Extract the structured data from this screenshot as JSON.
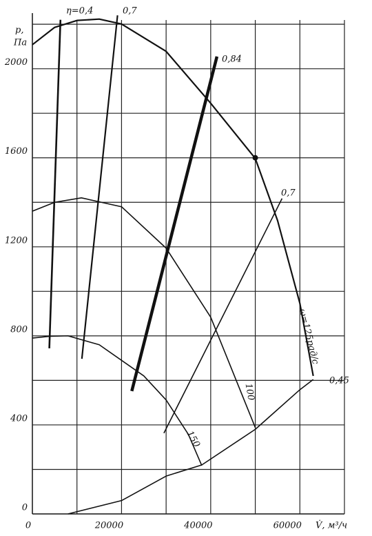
{
  "chart_data": {
    "type": "line",
    "y_label_1": "p,",
    "y_label_2": "Па",
    "x_label": "V̇, м³/ч",
    "xlim": [
      0,
      70000
    ],
    "ylim": [
      0,
      2250
    ],
    "xticks": [
      0,
      20000,
      40000,
      60000
    ],
    "yticks": [
      0,
      400,
      800,
      1200,
      1600,
      2000
    ],
    "xgrid": [
      10000,
      20000,
      30000,
      40000,
      50000,
      60000,
      70000
    ],
    "ygrid": [
      200,
      400,
      600,
      800,
      1000,
      1200,
      1400,
      1600,
      1800,
      2000,
      2200
    ],
    "color": "#111",
    "series": [
      {
        "name": "ω=125рад/с",
        "width": 2.2,
        "x": [
          0,
          5000,
          10000,
          15000,
          20000,
          30000,
          40000,
          50000,
          55000,
          60000,
          63000
        ],
        "values": [
          2108,
          2186,
          2217,
          2223,
          2201,
          2078,
          1845,
          1597,
          1318,
          946,
          620
        ]
      },
      {
        "name": "100",
        "width": 1.6,
        "x": [
          0,
          5000,
          11000,
          20000,
          30000,
          40000,
          45000,
          50000
        ],
        "values": [
          1360,
          1400,
          1420,
          1380,
          1194,
          884,
          636,
          388
        ]
      },
      {
        "name": "150",
        "width": 1.6,
        "x": [
          0,
          4000,
          8000,
          15000,
          25000,
          30000,
          35000,
          38000
        ],
        "values": [
          790,
          798,
          800,
          760,
          620,
          512,
          357,
          217
        ]
      },
      {
        "name": "0,45",
        "width": 1.6,
        "x": [
          8000,
          20000,
          30000,
          38000,
          50000,
          60000,
          63000
        ],
        "values": [
          0,
          60,
          170,
          220,
          380,
          558,
          604
        ]
      },
      {
        "name": "η=0,4",
        "width": 2.6,
        "x": [
          3800,
          6300
        ],
        "values": [
          744,
          2220
        ]
      },
      {
        "name": "0,7",
        "width": 2.2,
        "x": [
          11100,
          19100
        ],
        "values": [
          697,
          2240
        ]
      },
      {
        "name": "0,84",
        "width": 4.5,
        "x": [
          22300,
          41400
        ],
        "values": [
          552,
          2055
        ]
      },
      {
        "name": "0,7",
        "width": 1.6,
        "x": [
          29500,
          56000
        ],
        "values": [
          363,
          1417
        ]
      }
    ],
    "point": {
      "x": 50000,
      "y": 1600
    }
  }
}
